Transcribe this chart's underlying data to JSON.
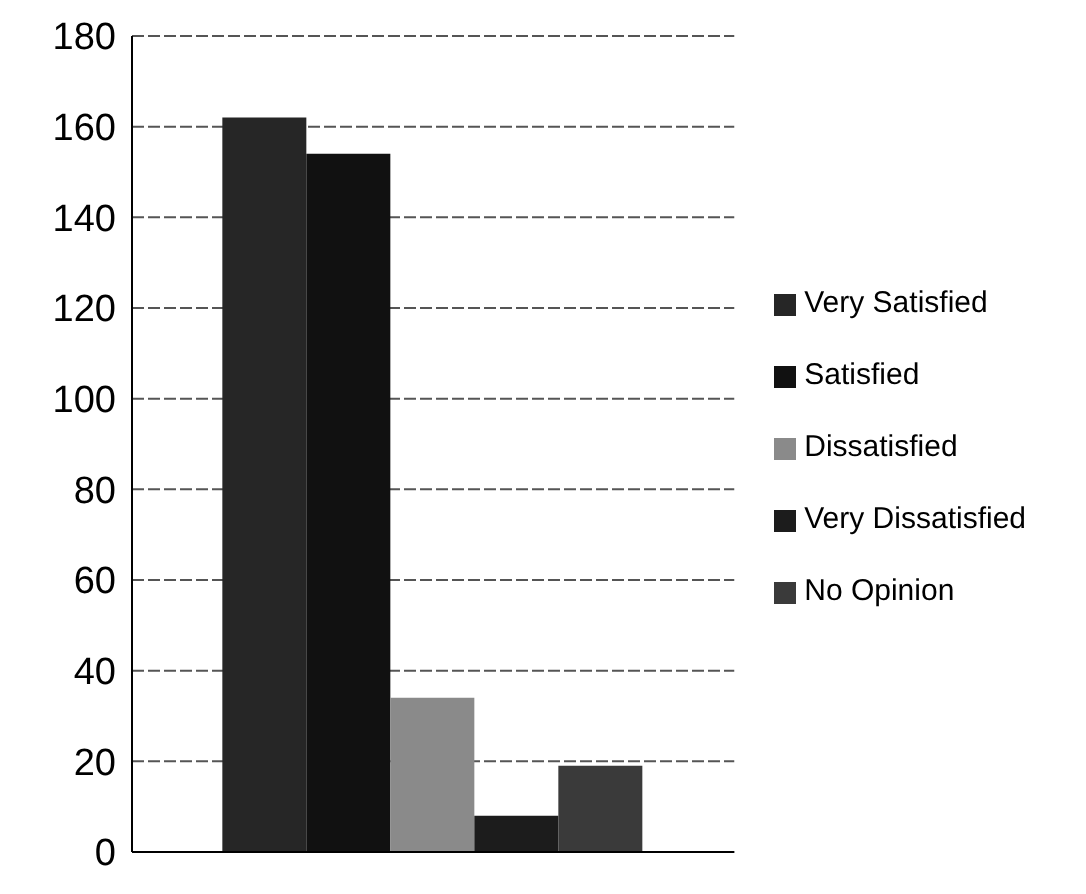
{
  "chart_data": {
    "type": "bar",
    "categories": [
      null
    ],
    "series": [
      {
        "name": "Very Satisfied",
        "color": "#262626",
        "values": [
          162
        ]
      },
      {
        "name": "Satisfied",
        "color": "#111111",
        "values": [
          154
        ]
      },
      {
        "name": "Dissatisfied",
        "color": "#8a8a8a",
        "values": [
          34
        ]
      },
      {
        "name": "Very Dissatisfied",
        "color": "#1c1c1c",
        "values": [
          8
        ]
      },
      {
        "name": "No Opinion",
        "color": "#3a3a3a",
        "values": [
          19
        ]
      }
    ],
    "ylim": [
      0,
      180
    ],
    "yticks": [
      0,
      20,
      40,
      60,
      80,
      100,
      120,
      140,
      160,
      180
    ],
    "grid": "y",
    "legend": "right"
  }
}
